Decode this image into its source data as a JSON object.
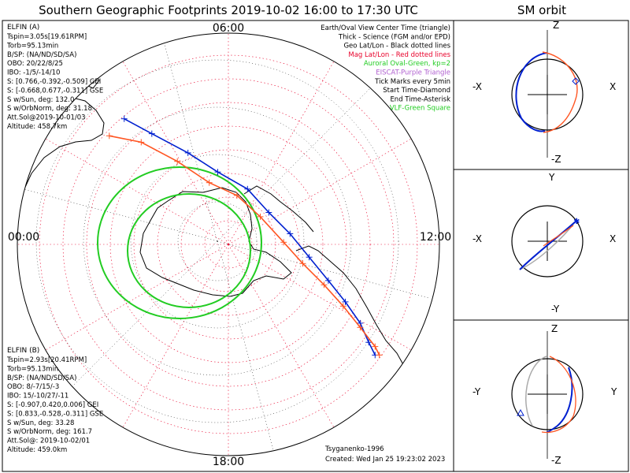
{
  "title": "Southern Geographic Footprints 2019-10-02 16:00 to 17:30 UTC",
  "orbit_title": "SM orbit",
  "clock": {
    "top": "06:00",
    "left": "00:00",
    "right": "12:00",
    "bottom": "18:00"
  },
  "legend": [
    {
      "text": "Earth/Oval View Center Time (triangle)",
      "color": "#000000"
    },
    {
      "text": "Thick - Science (FGM and/or EPD)",
      "color": "#000000"
    },
    {
      "text": "Geo Lat/Lon - Black dotted lines",
      "color": "#000000"
    },
    {
      "text": "Mag Lat/Lon - Red dotted lines",
      "color": "#e8002a"
    },
    {
      "text": "Auroral Oval-Green, kp=2",
      "color": "#22cc22"
    },
    {
      "text": "EISCAT-Purple Triangle",
      "color": "#b060d0"
    },
    {
      "text": "Tick Marks every 5min",
      "color": "#000000"
    },
    {
      "text": "Start Time-Diamond",
      "color": "#000000"
    },
    {
      "text": "End Time-Asterisk",
      "color": "#000000"
    },
    {
      "text": "VLF-Green Square",
      "color": "#22cc22"
    }
  ],
  "elfin_a": {
    "name": "ELFIN (A)",
    "color": "#0020d0",
    "lines": [
      "Tspin=3.05s[19.61RPM]",
      "Torb=95.13min",
      "B/SP: (NA/ND/SD/SA)",
      "OBO: 20/22/8/25",
      "IBO: -1/5/-14/10",
      "S: [0.766,-0.392,-0.509] GEI",
      "S: [-0.668,0.677,-0.311] GSE",
      "S w/Sun, deg: 132.0",
      "S w/OrbNorm, deg: 31.18",
      "Att.Sol@2019-10-01/03",
      "Altitude: 458.7km"
    ]
  },
  "elfin_b": {
    "name": "ELFIN (B)",
    "color": "#ff5522",
    "lines": [
      "Tspin=2.93s[20.41RPM]",
      "Torb=95.13min",
      "B/SP: (NA/ND/SD/SA)",
      "OBO: 8/-7/15/-3",
      "IBO: 15/-10/27/-11",
      "S: [-0.907,0.420,0.006] GEI",
      "S: [0.833,-0.528,-0.311] GSE",
      "S w/Sun, deg: 33.28",
      "S w/OrbNorm, deg: 161.7",
      "Att.Sol@: 2019-10-02/01",
      "Altitude: 459.0km"
    ]
  },
  "credits": {
    "model": "Tsyganenko-1996",
    "created": "Created: Wed Jan 25 19:23:02 2023"
  },
  "orbit_panels": [
    {
      "top": "Z",
      "bottom": "-Z",
      "left": "-X",
      "right": "X"
    },
    {
      "top": "Y",
      "bottom": "-Y",
      "left": "-X",
      "right": "X"
    },
    {
      "top": "Z",
      "bottom": "-Z",
      "left": "-Y",
      "right": "Y"
    }
  ],
  "chart_data": {
    "type": "scatter",
    "title": "Southern Geographic Footprints 2019-10-02 16:00 to 17:30 UTC",
    "projection": "south polar, magnetic local time around the rim",
    "grid": true,
    "series": [
      {
        "name": "ELFIN (A)",
        "color": "#0020d0",
        "points": [
          [
            -98,
            -118
          ],
          [
            -72,
            -104
          ],
          [
            -38,
            -86
          ],
          [
            -10,
            -68
          ],
          [
            18,
            -52
          ],
          [
            38,
            -30
          ],
          [
            58,
            -10
          ],
          [
            76,
            12
          ],
          [
            94,
            34
          ],
          [
            110,
            54
          ],
          [
            124,
            74
          ],
          [
            132,
            92
          ],
          [
            138,
            104
          ]
        ]
      },
      {
        "name": "ELFIN (B)",
        "color": "#ff5522",
        "points": [
          [
            -112,
            -102
          ],
          [
            -82,
            -96
          ],
          [
            -48,
            -78
          ],
          [
            -18,
            -58
          ],
          [
            8,
            -46
          ],
          [
            30,
            -26
          ],
          [
            52,
            -2
          ],
          [
            70,
            18
          ],
          [
            90,
            38
          ],
          [
            108,
            58
          ],
          [
            124,
            78
          ],
          [
            138,
            96
          ],
          [
            142,
            104
          ]
        ]
      }
    ]
  }
}
